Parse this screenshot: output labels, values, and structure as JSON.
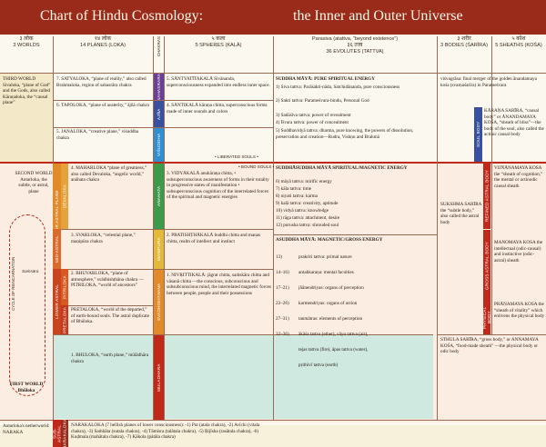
{
  "header": {
    "title_left": "Chart of Hindu Cosmology:",
    "title_right": "the Inner and Outer Universe"
  },
  "columns": {
    "worlds": {
      "dev": "३ लोक",
      "label": "3 WORLDS"
    },
    "planes": {
      "dev": "१४ लोक",
      "label": "14 PLANES (LOKA)"
    },
    "chakras": {
      "label": "CHAKRAS"
    },
    "spheres": {
      "dev": "५ कला",
      "label": "5 SPHERES (KALĀ)"
    },
    "tattvas": {
      "top": "Parasiva (atattva, “beyond existence”)",
      "dev": "३६ तत्त्व",
      "label": "36 EVOLUTES (TATTVA)"
    },
    "bodies": {
      "dev": "३ शरीर",
      "label": "3 BODIES (ŚARĪRA)"
    },
    "sheaths": {
      "dev": "५ कोश",
      "label": "5 SHEATHS (KOŚA)"
    }
  },
  "worlds": {
    "third": "THIRD WORLD Sivaloka, “plane of God” and the Gods, also called Kāraṇaloka, the “causal plane”",
    "second": "SECOND WORLD Antarloka, the subtle, or astral, plane",
    "first": "FIRST WORLD Bhūloka",
    "naraka": "Antarloka's netherworld: NARAKA",
    "cycle": "CYCLE OF REINCARNATION",
    "samsara": "Saṁsāra"
  },
  "planes": [
    "7. SATYALOKA, “plane of reality,” also called Brahmaloka, region of sahasrāra chakra",
    "6. TAPOLOKA, “plane of austerity,” ājñā chakra",
    "5. JANALOKA, “creative plane,” viśuddha chakra",
    "4. MAHARLOKA “plane of greatness,” also called Devaloka, “angelic world,” anāhata chakra",
    "3. SVARLOKA, “celestial plane,” maṇipūra chakra",
    "2. BHUVARLOKA, “plane of atmosphere,” svādhishṭhāna chakra — PITRILOKA, “world of ancestors”",
    "PRETALOKA, “world of the departed,” of earth-bound souls. The astral duplicate of Bhūloka.",
    "1. BHŪLOKA, “earth plane,” mūlādhāra chakra",
    "NARAKALOKA (7 hellish planes of lower consciousness): -1) Put (atala chakra), -2) Avīchi (vitala chakra), -3) Saṁhāta (sutala chakra), -4) Tāmisra (talātala chakra), -5) Ṛijīsha (rasātala chakra), -6) Kuḍmala (mahātala chakra), -7) Kākola (pātāla chakra)"
  ],
  "bands": {
    "higher_astral": "HIGHER ASTRAL PLANE",
    "mid_astral": "MID-ASTRAL",
    "lower_astral": "LOWER ASTRAL",
    "devaloka": "DEVALOKA",
    "pitriloka": "PITRILOKA",
    "pretaloka": "PRETALOKA",
    "narakaloka": "NARAKALOKA",
    "sub_astral": "SUB-ASTRAL",
    "sahasrara": "SAHASRARA",
    "ajna": "AJÑA",
    "visuddha": "VIŚUDDHA",
    "anahata": "ANAHATA",
    "manipura": "MAṆIPURA",
    "svadhishthana": "SVADHISHṬHANA",
    "muladhara": "MULADHARA",
    "soul_body": "SOUL BODY",
    "refined_astral": "REFINED ASTRAL BODY",
    "gross_astral": "GROSS ASTRAL BODY",
    "physical_body": "PHYSICAL BODY"
  },
  "spheres": [
    "5. ŚĀNTYATĪTAKALĀ Śivānanda, superconsciousness expanded into endless inner space.",
    "4. ŚĀNTIKALĀ kāraṇa chitta, superconscious forms made of inner sounds and colors",
    "3. VIDYĀKALĀ anukāraṇa chitta, • subsuperconscious awareness of forms in their totality in progressive states of manifestation • subsuperconscious cognition of the interrelated forces of the spiritual and magnetic energies",
    "2. PRATISHṬHĀKALĀ buddhi chitta and manas chitta, realm of intellect and instinct",
    "1. NIVṚITTIKALĀ: jāgrat chitta, saṁskāra chitta and vāsanā chitta —the conscious, subconscious and subsubconscious mind, the interrelated magnetic forces between people, people and their possessions"
  ],
  "souls": {
    "liberated": "• LIBERATED SOULS •",
    "bound": "• BOUND SOULS •"
  },
  "tattvas": {
    "suddha_title": "ŚUDDHA MĀYĀ: PURE SPIRITUAL ENERGY",
    "suddha": [
      "1) Śiva tattva: Parāśakti-nāda, Satchidānanda, pure consciousness",
      "2) Śakti tattva: Parameśvara-bindu, Personal God",
      "3) Sadāśiva tattva: power of revealment",
      "4) Īśvara tattva: power of concealment",
      "5) Śuddhavidyā tattva: dharma, pure knowing, the powers of dissolution, preservation and creation—Rudra, Vishṇu and Brahmā"
    ],
    "suddhasuddha_title": "ŚUDDHĀŚUDDHA MĀYĀ SPIRITUAL/MAGNETIC ENERGY",
    "suddhasuddha": [
      "6) māyā tattva: mirific energy",
      "7) kāla tattva: time",
      "8) niyati tattva: karma",
      "9) kalā tattva: creativity, aptitude",
      "10) vidyā tattva: knowledge",
      "11) rāga tattva: attachment, desire",
      "12) purusha tattva: shrouded soul"
    ],
    "asuddha_title": "AŚUDDHA MĀYĀ: MAGNETIC/GROSS ENERGY",
    "asuddha": [
      {
        "n": "13)",
        "t": "prakriti tattva: primal nature"
      },
      {
        "n": "14–16)",
        "t": "antahkaraṇa: mental faculties"
      },
      {
        "n": "17–21)",
        "t": "jñānendriyas: organs of perception"
      },
      {
        "n": "22–26)",
        "t": "karmendriyas: organs of action"
      },
      {
        "n": "27–31)",
        "t": "tanmātras: elements of perception"
      },
      {
        "n": "32–36)",
        "t": "ākāśa tattva (ether), vāyu tattva (air),"
      },
      {
        "n": "",
        "t": "tejas tattva (fire), āpas tattva (water),"
      },
      {
        "n": "",
        "t": "pṛithivī tattva (earth)"
      }
    ]
  },
  "bodies": {
    "visvagrasa": "viśvagrāsa: final merger of the golden ānandamaya kośa (svarṇaśarīra) in Parameśvara",
    "karana": "KĀRAṆA ŚARĪRA, “causal body” or ĀNANDAMAYA KOŚA, “sheath of bliss”—the body of the soul, also called the actinic causal body",
    "sukshma": "SŪKSHMA ŚARĪRA the “subtle body,” also called the astral body",
    "vijnanamaya": "VIJÑĀNAMAYA KOŚA the “sheath of cognition,” the mental or actinodic causal sheath",
    "manomaya": "MANOMAYA KOŚA the intellectual (odic-causal) and instinctive (odic-astral) sheath",
    "pranamaya": "PRĀṆAMAYA KOŚA the “sheath of vitality” which enlivens the physical body",
    "sthula": "STHŪLA ŚARĪRA, “gross body,” or ANNAMAYA KOŚA, “food-made sheath” —the physical body or odic body"
  },
  "colors": {
    "header": "#9a2a1a",
    "red": "#c0281a",
    "orange": "#e08a2a",
    "yellow": "#e2b93a",
    "violet": "#6a3f96",
    "indigo": "#3950a0",
    "blue": "#2f8fd0",
    "green": "#3c9a4a",
    "cream": "#f3e8c8",
    "teal": "#cfe8e0"
  }
}
